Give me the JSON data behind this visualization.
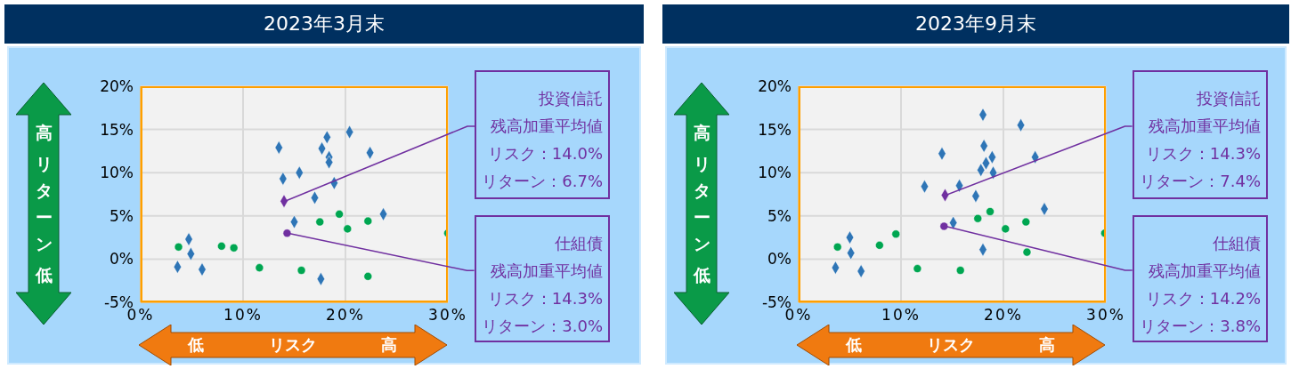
{
  "chart_data": [
    {
      "type": "scatter",
      "title": "2023年3月末",
      "xlabel": "リスク",
      "ylabel": "リターン",
      "xlim": [
        0,
        30
      ],
      "xticks": [
        {
          "value": 0,
          "label": "0%"
        },
        {
          "value": 10,
          "label": "10%"
        },
        {
          "value": 20,
          "label": "20%"
        },
        {
          "value": 30,
          "label": "30%"
        }
      ],
      "ylim": [
        -5,
        20
      ],
      "yticks": [
        {
          "value": -5,
          "label": "-5%"
        },
        {
          "value": 0,
          "label": "0%"
        },
        {
          "value": 5,
          "label": "5%"
        },
        {
          "value": 10,
          "label": "10%"
        },
        {
          "value": 15,
          "label": "15%"
        },
        {
          "value": 20,
          "label": "20%"
        }
      ],
      "grid": true,
      "series": [
        {
          "color": "#2e75b6",
          "marker": "diamond",
          "x": [
            13.5,
            18.2,
            20.4,
            17.7,
            18.4,
            18.4,
            22.4,
            13.9,
            15.5,
            18.9,
            17.0,
            23.7,
            15.0,
            4.7,
            4.9,
            3.6,
            6.0,
            17.6
          ],
          "values": [
            12.9,
            14.1,
            14.7,
            12.8,
            11.8,
            11.2,
            12.3,
            9.3,
            10.0,
            8.8,
            7.1,
            5.2,
            4.3,
            2.3,
            0.6,
            -0.9,
            -1.2,
            -2.3
          ]
        },
        {
          "color": "#00a651",
          "marker": "circle",
          "x": [
            3.7,
            7.9,
            9.1,
            11.6,
            15.7,
            17.5,
            19.4,
            20.2,
            22.2,
            22.2,
            30.0
          ],
          "values": [
            1.4,
            1.5,
            1.3,
            -1.0,
            -1.3,
            4.3,
            5.2,
            3.5,
            4.4,
            -2.0,
            3.0
          ]
        },
        {
          "color": "#7030a0",
          "marker": "diamond",
          "x": [
            14.0
          ],
          "values": [
            6.7
          ]
        },
        {
          "color": "#7030a0",
          "marker": "circle",
          "x": [
            14.3
          ],
          "values": [
            3.0
          ]
        }
      ],
      "annotations": [
        "投資信託",
        {
          "text": "残高加重平均値",
          "x": 14.0,
          "y": 6.7
        },
        "リスク：14.0%",
        "リターン：6.7%",
        "仕組債",
        {
          "text": "残高加重平均値",
          "x": 14.3,
          "y": 3.0
        },
        "リスク：14.3%",
        "リターン：3.0%",
        "高",
        "低",
        "低",
        "高"
      ]
    },
    {
      "type": "scatter",
      "title": "2023年9月末",
      "xlabel": "リスク",
      "ylabel": "リターン",
      "xlim": [
        0,
        30
      ],
      "xticks": [
        {
          "value": 0,
          "label": "0%"
        },
        {
          "value": 10,
          "label": "10%"
        },
        {
          "value": 20,
          "label": "20%"
        },
        {
          "value": 30,
          "label": "30%"
        }
      ],
      "ylim": [
        -5,
        20
      ],
      "yticks": [
        {
          "value": -5,
          "label": "-5%"
        },
        {
          "value": 0,
          "label": "0%"
        },
        {
          "value": 5,
          "label": "5%"
        },
        {
          "value": 10,
          "label": "10%"
        },
        {
          "value": 15,
          "label": "15%"
        },
        {
          "value": 20,
          "label": "20%"
        }
      ],
      "grid": true,
      "series": [
        {
          "color": "#2e75b6",
          "marker": "diamond",
          "x": [
            18.0,
            21.7,
            18.1,
            14.0,
            18.9,
            23.1,
            18.3,
            17.8,
            19.0,
            12.3,
            15.7,
            17.3,
            24.0,
            15.1,
            5.0,
            5.1,
            3.6,
            6.1,
            18.0
          ],
          "values": [
            16.7,
            15.5,
            13.1,
            12.2,
            11.8,
            11.8,
            11.1,
            10.3,
            10.0,
            8.4,
            8.5,
            7.3,
            5.8,
            4.2,
            2.5,
            0.7,
            -1.0,
            -1.4,
            1.1
          ]
        },
        {
          "color": "#00a651",
          "marker": "circle",
          "x": [
            3.8,
            7.9,
            9.5,
            11.6,
            15.8,
            17.5,
            18.7,
            20.2,
            22.2,
            22.3,
            29.9
          ],
          "values": [
            1.4,
            1.6,
            2.9,
            -1.1,
            -1.3,
            4.7,
            5.5,
            3.5,
            4.3,
            0.8,
            3.0
          ]
        },
        {
          "color": "#7030a0",
          "marker": "diamond",
          "x": [
            14.3
          ],
          "values": [
            7.4
          ]
        },
        {
          "color": "#7030a0",
          "marker": "circle",
          "x": [
            14.2
          ],
          "values": [
            3.8
          ]
        }
      ],
      "annotations": [
        "投資信託",
        {
          "text": "残高加重平均値",
          "x": 14.3,
          "y": 7.4
        },
        "リスク：14.3%",
        "リターン：7.4%",
        "仕組債",
        {
          "text": "残高加重平均値",
          "x": 14.2,
          "y": 3.8
        },
        "リスク：14.2%",
        "リターン：3.8%",
        "高",
        "低",
        "低",
        "高"
      ]
    }
  ]
}
